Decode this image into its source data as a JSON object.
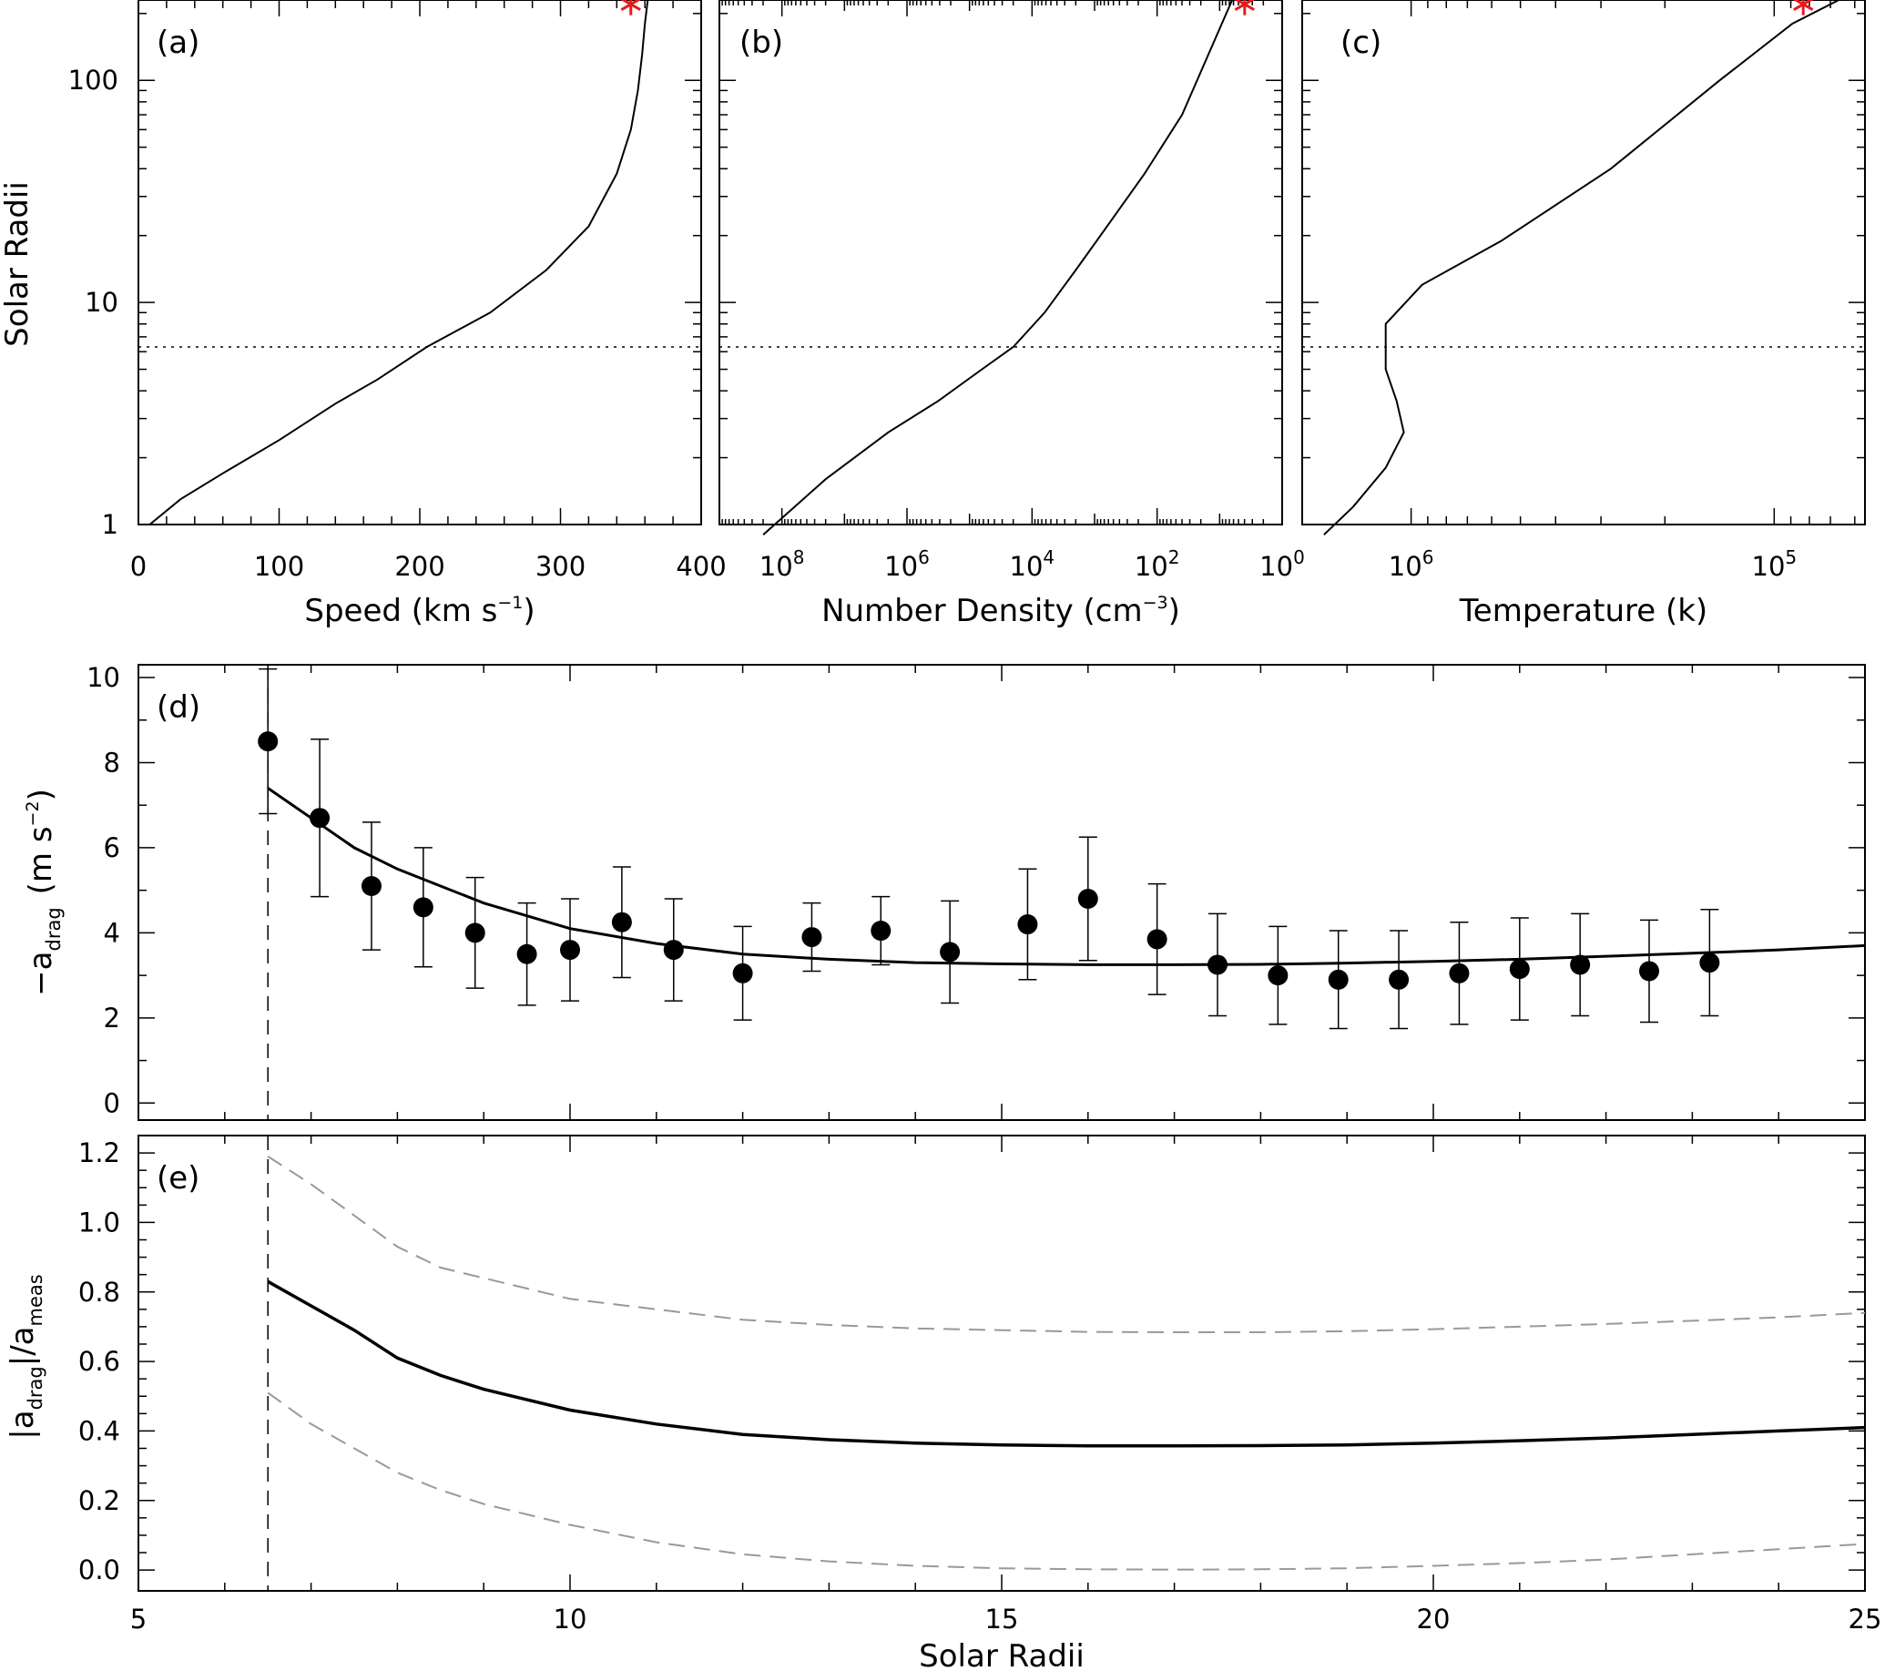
{
  "chart_data": [
    {
      "panel": "(a)",
      "type": "line",
      "xlabel": "Speed (km s",
      "xlabel_sup": "−1",
      "xlabel_end": ")",
      "ylabel": "Solar Radii",
      "yscale": "log",
      "ylim": [
        1,
        230
      ],
      "xlim": [
        0,
        400
      ],
      "xticks": [
        "0",
        "100",
        "200",
        "300",
        "400"
      ],
      "yticks": [
        "1",
        "10",
        "100"
      ],
      "curve": {
        "x": [
          8,
          30,
          60,
          100,
          140,
          170,
          205,
          250,
          290,
          320,
          340,
          350,
          355,
          358,
          360,
          362
        ],
        "y": [
          1.0,
          1.3,
          1.7,
          2.4,
          3.5,
          4.5,
          6.3,
          9.0,
          14,
          22,
          38,
          60,
          90,
          130,
          180,
          230
        ]
      },
      "dotted_line_y": 6.3,
      "marker": {
        "x": 350,
        "y": 220,
        "symbol": "asterisk",
        "color": "#e8191d"
      }
    },
    {
      "panel": "(b)",
      "type": "line",
      "xlabel": "Number Density (cm",
      "xlabel_sup": "−3",
      "xlabel_end": ")",
      "xscale": "log",
      "xreversed": true,
      "xlim_log10": [
        9.0,
        0.0
      ],
      "yscale": "log",
      "ylim": [
        1,
        230
      ],
      "xticks": [
        {
          "base": "10",
          "exp": "8"
        },
        {
          "base": "10",
          "exp": "6"
        },
        {
          "base": "10",
          "exp": "4"
        },
        {
          "base": "10",
          "exp": "2"
        },
        {
          "base": "10",
          "exp": "0"
        }
      ],
      "curve": {
        "log10n": [
          8.3,
          7.3,
          6.3,
          5.5,
          4.8,
          4.3,
          3.8,
          3.3,
          2.8,
          2.2,
          1.6,
          0.8
        ],
        "y": [
          0.9,
          1.6,
          2.6,
          3.6,
          5.0,
          6.3,
          9.0,
          14,
          22,
          38,
          70,
          230
        ]
      },
      "dotted_line_y": 6.3,
      "marker": {
        "log10n": 0.6,
        "y": 220,
        "symbol": "asterisk",
        "color": "#e8191d"
      }
    },
    {
      "panel": "(c)",
      "type": "line",
      "xlabel": "Temperature (k)",
      "xscale": "log",
      "xreversed": true,
      "xlim_log10": [
        6.3,
        4.75
      ],
      "yscale": "log",
      "ylim": [
        1,
        230
      ],
      "xticks": [
        {
          "base": "10",
          "exp": "6"
        },
        {
          "base": "10",
          "exp": "5"
        }
      ],
      "curve": {
        "log10T": [
          6.24,
          6.16,
          6.07,
          6.02,
          6.04,
          6.07,
          6.07,
          5.97,
          5.75,
          5.45,
          5.15,
          4.95,
          4.8
        ],
        "y": [
          0.9,
          1.2,
          1.8,
          2.6,
          3.6,
          5.0,
          8.0,
          12,
          19,
          40,
          100,
          180,
          240
        ]
      },
      "dotted_line_y": 6.3,
      "marker": {
        "log10T": 4.92,
        "y": 220,
        "symbol": "asterisk",
        "color": "#e8191d"
      }
    },
    {
      "panel": "(d)",
      "type": "scatter+line",
      "ylabel": "−a",
      "ylabel_sub": "drag",
      "ylabel_unit": "(m s",
      "ylabel_sup": "−2",
      "ylabel_end": ")",
      "xlim": [
        5,
        25
      ],
      "ylim": [
        -0.4,
        10.3
      ],
      "yticks": [
        "0",
        "2",
        "4",
        "6",
        "8",
        "10"
      ],
      "points": {
        "x": [
          6.5,
          7.1,
          7.7,
          8.3,
          8.9,
          9.5,
          10.0,
          10.6,
          11.2,
          12.0,
          12.8,
          13.6,
          14.4,
          15.3,
          16.0,
          16.8,
          17.5,
          18.2,
          18.9,
          19.6,
          20.3,
          21.0,
          21.7,
          22.5,
          23.2
        ],
        "y": [
          8.5,
          6.7,
          5.1,
          4.6,
          4.0,
          3.5,
          3.6,
          4.25,
          3.6,
          3.05,
          3.9,
          4.05,
          3.55,
          4.2,
          4.8,
          3.85,
          3.25,
          3.0,
          2.9,
          2.9,
          3.05,
          3.15,
          3.25,
          3.1,
          3.3
        ],
        "err": [
          1.7,
          1.85,
          1.5,
          1.4,
          1.3,
          1.2,
          1.2,
          1.3,
          1.2,
          1.1,
          0.8,
          0.8,
          1.2,
          1.3,
          1.45,
          1.3,
          1.2,
          1.15,
          1.15,
          1.15,
          1.2,
          1.2,
          1.2,
          1.2,
          1.25
        ]
      },
      "model": {
        "x": [
          6.5,
          7.0,
          7.5,
          8.0,
          8.5,
          9.0,
          10.0,
          11.0,
          12.0,
          13.0,
          14.0,
          15.0,
          16.0,
          17.0,
          18.0,
          19.0,
          20.0,
          21.0,
          22.0,
          23.0,
          24.0,
          25.0
        ],
        "y": [
          7.4,
          6.7,
          6.0,
          5.5,
          5.1,
          4.7,
          4.1,
          3.75,
          3.5,
          3.38,
          3.3,
          3.27,
          3.25,
          3.25,
          3.26,
          3.29,
          3.33,
          3.38,
          3.45,
          3.52,
          3.6,
          3.7
        ]
      },
      "dashed_line_x": 6.5
    },
    {
      "panel": "(e)",
      "type": "line",
      "ylabel": "|a",
      "ylabel_sub1": "drag",
      "ylabel_mid": "|/a",
      "ylabel_sub2": "meas",
      "xlabel": "Solar Radii",
      "xlim": [
        5,
        25
      ],
      "ylim": [
        -0.06,
        1.25
      ],
      "xticks": [
        "5",
        "10",
        "15",
        "20",
        "25"
      ],
      "yticks": [
        "0.0",
        "0.2",
        "0.4",
        "0.6",
        "0.8",
        "1.0",
        "1.2"
      ],
      "x": [
        6.5,
        7.0,
        7.5,
        8.0,
        8.5,
        9.0,
        10.0,
        11.0,
        12.0,
        13.0,
        14.0,
        15.0,
        16.0,
        17.0,
        18.0,
        19.0,
        20.0,
        21.0,
        22.0,
        23.0,
        24.0,
        25.0
      ],
      "series": [
        {
          "name": "ratio",
          "style": "solid",
          "color": "#000000",
          "values": [
            0.83,
            0.76,
            0.69,
            0.61,
            0.56,
            0.52,
            0.46,
            0.42,
            0.39,
            0.375,
            0.365,
            0.36,
            0.357,
            0.357,
            0.358,
            0.36,
            0.365,
            0.372,
            0.38,
            0.39,
            0.4,
            0.41
          ]
        },
        {
          "name": "upper",
          "style": "dashed",
          "color": "#999999",
          "values": [
            1.19,
            1.11,
            1.02,
            0.93,
            0.87,
            0.84,
            0.78,
            0.75,
            0.72,
            0.705,
            0.695,
            0.69,
            0.685,
            0.684,
            0.684,
            0.687,
            0.693,
            0.7,
            0.708,
            0.717,
            0.727,
            0.74
          ]
        },
        {
          "name": "lower",
          "style": "dashed",
          "color": "#999999",
          "values": [
            0.51,
            0.42,
            0.35,
            0.28,
            0.23,
            0.19,
            0.13,
            0.08,
            0.045,
            0.025,
            0.012,
            0.005,
            0.002,
            0.001,
            0.002,
            0.005,
            0.012,
            0.02,
            0.03,
            0.045,
            0.06,
            0.075
          ]
        }
      ],
      "dashed_line_x": 6.5
    }
  ]
}
